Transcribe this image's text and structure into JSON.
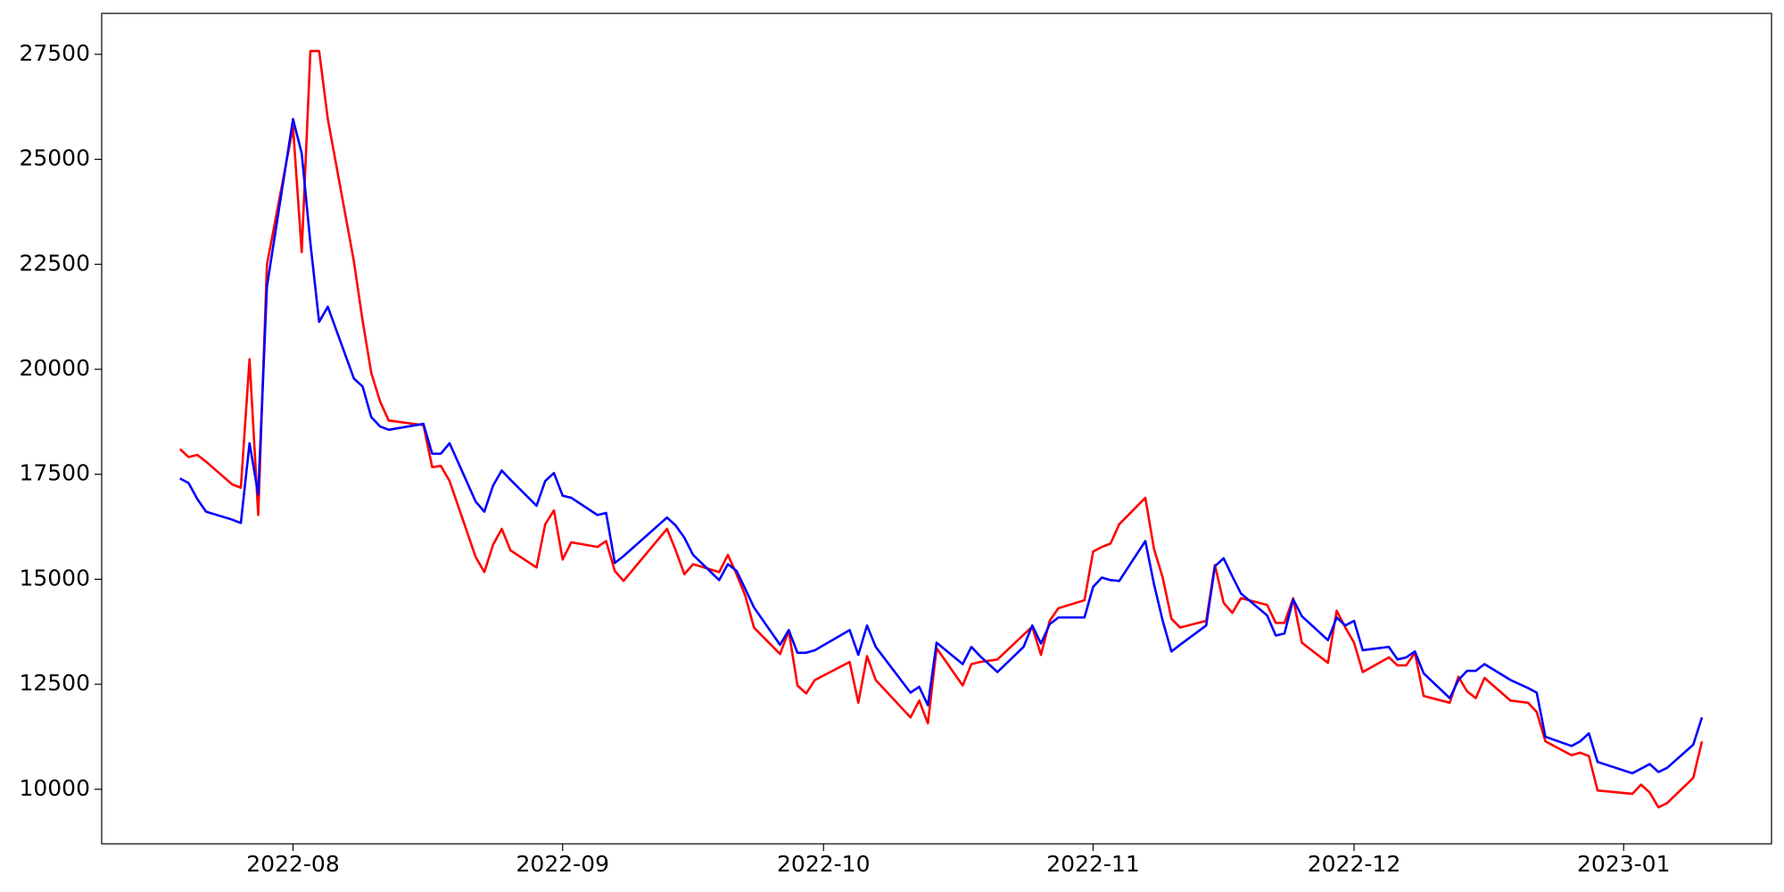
{
  "chart_data": {
    "type": "line",
    "x": [
      "2022-07-19",
      "2022-07-20",
      "2022-07-21",
      "2022-07-22",
      "2022-07-25",
      "2022-07-26",
      "2022-07-27",
      "2022-07-28",
      "2022-07-29",
      "2022-08-01",
      "2022-08-02",
      "2022-08-03",
      "2022-08-04",
      "2022-08-05",
      "2022-08-08",
      "2022-08-09",
      "2022-08-10",
      "2022-08-11",
      "2022-08-12",
      "2022-08-16",
      "2022-08-17",
      "2022-08-18",
      "2022-08-19",
      "2022-08-22",
      "2022-08-23",
      "2022-08-24",
      "2022-08-25",
      "2022-08-26",
      "2022-08-29",
      "2022-08-30",
      "2022-08-31",
      "2022-09-01",
      "2022-09-02",
      "2022-09-05",
      "2022-09-06",
      "2022-09-07",
      "2022-09-08",
      "2022-09-13",
      "2022-09-14",
      "2022-09-15",
      "2022-09-16",
      "2022-09-19",
      "2022-09-20",
      "2022-09-21",
      "2022-09-22",
      "2022-09-23",
      "2022-09-26",
      "2022-09-27",
      "2022-09-28",
      "2022-09-29",
      "2022-09-30",
      "2022-10-04",
      "2022-10-05",
      "2022-10-06",
      "2022-10-07",
      "2022-10-11",
      "2022-10-12",
      "2022-10-13",
      "2022-10-14",
      "2022-10-17",
      "2022-10-18",
      "2022-10-19",
      "2022-10-21",
      "2022-10-24",
      "2022-10-25",
      "2022-10-26",
      "2022-10-27",
      "2022-10-28",
      "2022-10-31",
      "2022-11-01",
      "2022-11-02",
      "2022-11-03",
      "2022-11-04",
      "2022-11-07",
      "2022-11-08",
      "2022-11-09",
      "2022-11-10",
      "2022-11-11",
      "2022-11-14",
      "2022-11-15",
      "2022-11-16",
      "2022-11-17",
      "2022-11-18",
      "2022-11-21",
      "2022-11-22",
      "2022-11-23",
      "2022-11-24",
      "2022-11-25",
      "2022-11-28",
      "2022-11-29",
      "2022-11-30",
      "2022-12-01",
      "2022-12-02",
      "2022-12-05",
      "2022-12-06",
      "2022-12-07",
      "2022-12-08",
      "2022-12-09",
      "2022-12-12",
      "2022-12-13",
      "2022-12-14",
      "2022-12-15",
      "2022-12-16",
      "2022-12-19",
      "2022-12-21",
      "2022-12-22",
      "2022-12-23",
      "2022-12-26",
      "2022-12-27",
      "2022-12-28",
      "2022-12-29",
      "2023-01-02",
      "2023-01-03",
      "2023-01-04",
      "2023-01-05",
      "2023-01-06",
      "2023-01-09",
      "2023-01-10"
    ],
    "series": [
      {
        "color": "#ff0000",
        "values": [
          18100,
          17910,
          17960,
          17800,
          17260,
          17180,
          20240,
          16530,
          22490,
          25770,
          22790,
          27580,
          27580,
          25960,
          22570,
          21160,
          19910,
          19240,
          18780,
          18670,
          17670,
          17700,
          17340,
          15530,
          15170,
          15820,
          16200,
          15690,
          15280,
          16310,
          16640,
          15470,
          15880,
          15770,
          15910,
          15200,
          14960,
          16200,
          15690,
          15120,
          15360,
          15170,
          15580,
          15120,
          14610,
          13850,
          13220,
          13770,
          12470,
          12280,
          12600,
          13030,
          12060,
          13170,
          12600,
          11710,
          12110,
          11570,
          13360,
          12470,
          12980,
          13030,
          13090,
          13680,
          13870,
          13200,
          14010,
          14310,
          14500,
          15660,
          15770,
          15850,
          16310,
          16940,
          15720,
          15040,
          14060,
          13850,
          14010,
          15340,
          14440,
          14200,
          14550,
          14390,
          13960,
          13960,
          14550,
          13490,
          13010,
          14250,
          13850,
          13490,
          12790,
          13140,
          12950,
          12950,
          13250,
          12220,
          12060,
          12680,
          12330,
          12170,
          12650,
          12110,
          12060,
          11840,
          11140,
          10810,
          10870,
          10790,
          9970,
          9890,
          10110,
          9920,
          9570,
          9670,
          10270,
          11140
        ]
      },
      {
        "color": "#0000ff",
        "values": [
          17400,
          17290,
          16910,
          16610,
          16420,
          16340,
          18240,
          17020,
          21970,
          25960,
          25140,
          23000,
          21130,
          21490,
          19780,
          19590,
          18860,
          18640,
          18560,
          18700,
          17990,
          17990,
          18240,
          16850,
          16610,
          17230,
          17590,
          17370,
          16750,
          17340,
          17530,
          16990,
          16940,
          16530,
          16580,
          15390,
          15550,
          16470,
          16280,
          15990,
          15580,
          14980,
          15360,
          15200,
          14770,
          14330,
          13440,
          13790,
          13250,
          13250,
          13310,
          13790,
          13200,
          13900,
          13390,
          12300,
          12440,
          12000,
          13490,
          12980,
          13390,
          13170,
          12790,
          13390,
          13900,
          13470,
          13930,
          14090,
          14090,
          14820,
          15040,
          14980,
          14960,
          15910,
          14880,
          14010,
          13280,
          13440,
          13900,
          15310,
          15500,
          15070,
          14660,
          14140,
          13660,
          13710,
          14520,
          14120,
          13550,
          14090,
          13900,
          14010,
          13310,
          13390,
          13090,
          13140,
          13280,
          12760,
          12170,
          12600,
          12820,
          12820,
          12980,
          12600,
          12410,
          12300,
          11250,
          11030,
          11140,
          11330,
          10650,
          10380,
          10490,
          10600,
          10410,
          10510,
          11060,
          11710
        ]
      }
    ],
    "xlim": [
      "2022-07-10",
      "2023-01-18"
    ],
    "xticks": [
      {
        "value": "2022-08-01",
        "label": "2022-08"
      },
      {
        "value": "2022-09-01",
        "label": "2022-09"
      },
      {
        "value": "2022-10-01",
        "label": "2022-10"
      },
      {
        "value": "2022-11-01",
        "label": "2022-11"
      },
      {
        "value": "2022-12-01",
        "label": "2022-12"
      },
      {
        "value": "2023-01-01",
        "label": "2023-01"
      }
    ],
    "ylim": [
      8700,
      28475
    ],
    "yticks": [
      10000,
      12500,
      15000,
      17500,
      20000,
      22500,
      25000,
      27500
    ],
    "grid": false
  }
}
